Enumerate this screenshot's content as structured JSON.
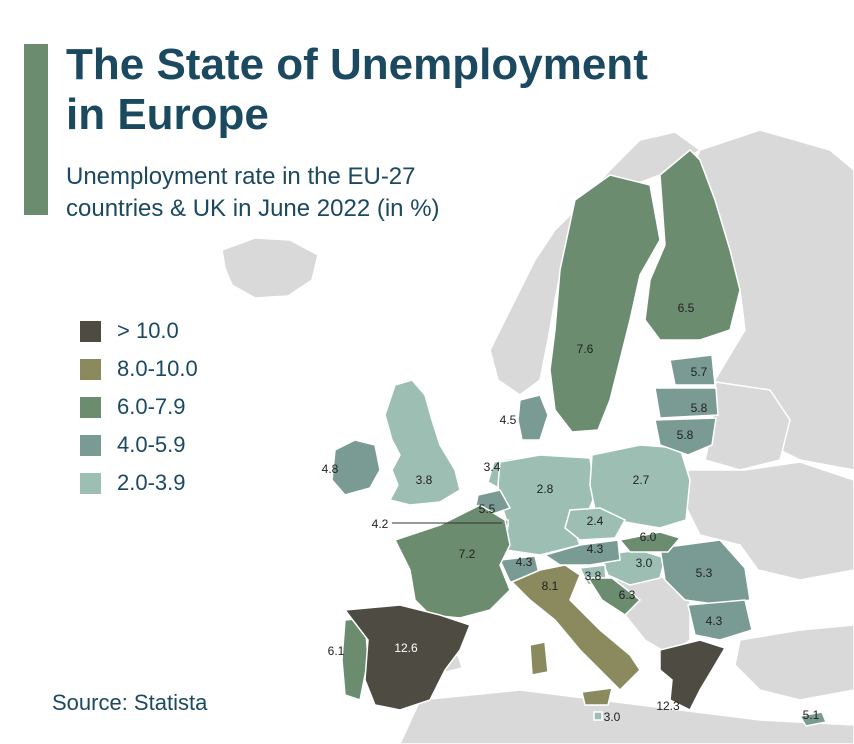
{
  "header": {
    "title_line1": "The State of Unemployment",
    "title_line2": "in Europe",
    "subtitle_line1": "Unemployment rate in the EU-27",
    "subtitle_line2": "countries & UK in June 2022 (in %)"
  },
  "legend": [
    {
      "label": "> 10.0",
      "color": "#4e4c42"
    },
    {
      "label": "8.0-10.0",
      "color": "#8a8a5e"
    },
    {
      "label": "6.0-7.9",
      "color": "#6b8c6e"
    },
    {
      "label": "4.0-5.9",
      "color": "#7a9b93"
    },
    {
      "label": "2.0-3.9",
      "color": "#9dbfb3"
    }
  ],
  "colors": {
    "accent": "#6b8c6e",
    "text": "#1b4960",
    "non_eu_land": "#d9d9d9",
    "sea": "#ffffff"
  },
  "countries": {
    "finland": {
      "value": "6.5"
    },
    "sweden": {
      "value": "7.6"
    },
    "estonia": {
      "value": "5.7"
    },
    "latvia": {
      "value": "5.8"
    },
    "lithuania": {
      "value": "5.8"
    },
    "denmark": {
      "value": "4.5"
    },
    "ireland": {
      "value": "4.8"
    },
    "uk": {
      "value": "3.8"
    },
    "netherlands": {
      "value": "3.4"
    },
    "belgium": {
      "value": "5.5"
    },
    "luxembourg": {
      "value": "4.2"
    },
    "germany": {
      "value": "2.8"
    },
    "poland": {
      "value": "2.7"
    },
    "czechia": {
      "value": "2.4"
    },
    "slovakia": {
      "value": "6.0"
    },
    "austria": {
      "value": "4.3"
    },
    "hungary": {
      "value": "3.0"
    },
    "france": {
      "value": "7.2"
    },
    "switzerland": {
      "value": "4.3"
    },
    "italy": {
      "value": "8.1"
    },
    "slovenia": {
      "value": "3.8"
    },
    "croatia": {
      "value": "6.3"
    },
    "romania": {
      "value": "5.3"
    },
    "bulgaria": {
      "value": "4.3"
    },
    "spain": {
      "value": "12.6"
    },
    "portugal": {
      "value": "6.1"
    },
    "greece": {
      "value": "12.3"
    },
    "malta": {
      "value": "3.0"
    },
    "cyprus": {
      "value": "5.1"
    }
  },
  "source": "Source: Statista"
}
